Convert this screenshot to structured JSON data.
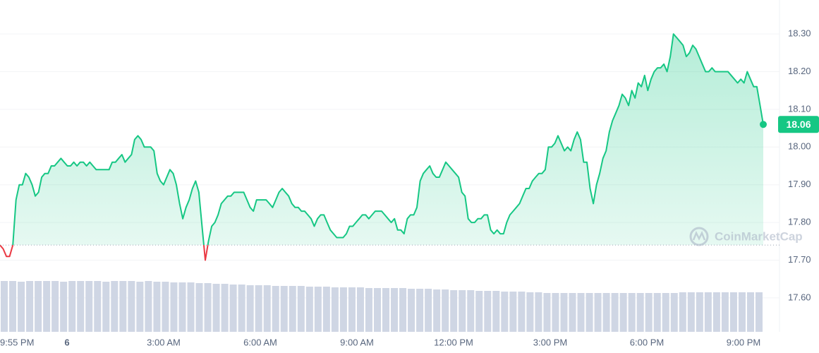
{
  "chart_data": {
    "type": "line",
    "series": [
      {
        "color": "#16c784",
        "values": [
          17.74,
          17.73,
          17.71,
          17.71,
          17.74,
          17.86,
          17.9,
          17.9,
          17.93,
          17.92,
          17.9,
          17.87,
          17.88,
          17.92,
          17.93,
          17.93,
          17.95,
          17.95,
          17.96,
          17.97,
          17.96,
          17.95,
          17.95,
          17.96,
          17.95,
          17.96,
          17.96,
          17.95,
          17.96,
          17.95,
          17.94,
          17.94,
          17.94,
          17.94,
          17.94,
          17.96,
          17.96,
          17.97,
          17.98,
          17.96,
          17.97,
          17.98,
          18.02,
          18.03,
          18.02,
          18.0,
          18.0,
          18.0,
          17.99,
          17.93,
          17.91,
          17.9,
          17.92,
          17.94,
          17.93,
          17.9,
          17.85,
          17.81,
          17.84,
          17.86,
          17.89,
          17.91,
          17.88,
          17.79,
          17.7,
          17.75,
          17.79,
          17.8,
          17.82,
          17.85,
          17.86,
          17.87,
          17.87,
          17.88,
          17.88,
          17.88,
          17.88,
          17.86,
          17.84,
          17.83,
          17.86,
          17.86,
          17.86,
          17.86,
          17.85,
          17.84,
          17.86,
          17.88,
          17.89,
          17.88,
          17.87,
          17.85,
          17.84,
          17.84,
          17.83,
          17.83,
          17.82,
          17.81,
          17.79,
          17.81,
          17.82,
          17.82,
          17.8,
          17.78,
          17.77,
          17.76,
          17.76,
          17.76,
          17.77,
          17.79,
          17.79,
          17.8,
          17.81,
          17.82,
          17.82,
          17.81,
          17.82,
          17.83,
          17.83,
          17.83,
          17.82,
          17.81,
          17.8,
          17.81,
          17.78,
          17.78,
          17.77,
          17.81,
          17.82,
          17.82,
          17.84,
          17.91,
          17.93,
          17.94,
          17.95,
          17.93,
          17.92,
          17.92,
          17.94,
          17.96,
          17.95,
          17.94,
          17.93,
          17.92,
          17.88,
          17.87,
          17.81,
          17.8,
          17.8,
          17.81,
          17.81,
          17.82,
          17.82,
          17.78,
          17.77,
          17.78,
          17.77,
          17.77,
          17.8,
          17.82,
          17.83,
          17.84,
          17.85,
          17.87,
          17.89,
          17.89,
          17.91,
          17.92,
          17.93,
          17.93,
          17.94,
          18.0,
          18.0,
          18.01,
          18.03,
          18.01,
          17.99,
          18.0,
          17.99,
          18.02,
          18.04,
          18.02,
          17.96,
          17.96,
          17.89,
          17.85,
          17.9,
          17.93,
          17.97,
          17.99,
          18.04,
          18.07,
          18.09,
          18.11,
          18.14,
          18.13,
          18.11,
          18.15,
          18.13,
          18.17,
          18.16,
          18.19,
          18.15,
          18.18,
          18.2,
          18.21,
          18.21,
          18.22,
          18.2,
          18.24,
          18.3,
          18.29,
          18.28,
          18.27,
          18.24,
          18.25,
          18.27,
          18.26,
          18.24,
          18.22,
          18.2,
          18.2,
          18.21,
          18.2,
          18.2,
          18.2,
          18.2,
          18.2,
          18.19,
          18.18,
          18.17,
          18.18,
          18.17,
          18.2,
          18.18,
          18.16,
          18.16,
          18.11,
          18.06
        ]
      }
    ],
    "down_color": "#ea3943",
    "baseline": 17.74,
    "ylim": [
      17.51,
      18.39
    ],
    "yticks": [
      {
        "value": 17.6,
        "label": "17.60"
      },
      {
        "value": 17.7,
        "label": "17.70"
      },
      {
        "value": 17.8,
        "label": "17.80"
      },
      {
        "value": 17.9,
        "label": "17.90"
      },
      {
        "value": 18.0,
        "label": "18.00"
      },
      {
        "value": 18.1,
        "label": "18.10"
      },
      {
        "value": 18.2,
        "label": "18.20"
      },
      {
        "value": 18.3,
        "label": "18.30"
      }
    ],
    "x_labels": [
      "9:55 PM",
      "6",
      "3:00 AM",
      "6:00 AM",
      "9:00 AM",
      "12:00 PM",
      "3:00 PM",
      "6:00 PM",
      "9:00 PM"
    ],
    "grid": true,
    "volume": {
      "color": "#cfd6e4",
      "values": [
        72,
        72,
        71,
        72,
        72,
        72,
        72,
        71,
        72,
        72,
        72,
        72,
        71,
        72,
        72,
        72,
        71,
        72,
        71,
        71,
        70,
        70,
        70,
        69,
        69,
        68,
        68,
        67,
        67,
        66,
        66,
        66,
        65,
        65,
        65,
        65,
        64,
        64,
        64,
        63,
        63,
        63,
        63,
        62,
        62,
        62,
        62,
        62,
        61,
        61,
        61,
        60,
        60,
        59,
        59,
        59,
        58,
        58,
        58,
        57,
        57,
        57,
        56,
        56,
        55,
        55,
        55,
        55,
        55,
        55,
        55,
        55,
        55,
        55,
        55,
        55,
        55,
        55,
        55,
        55,
        56,
        56,
        56,
        56,
        56,
        56,
        56,
        56,
        56,
        56
      ]
    },
    "watermark": "CoinMarketCap"
  }
}
